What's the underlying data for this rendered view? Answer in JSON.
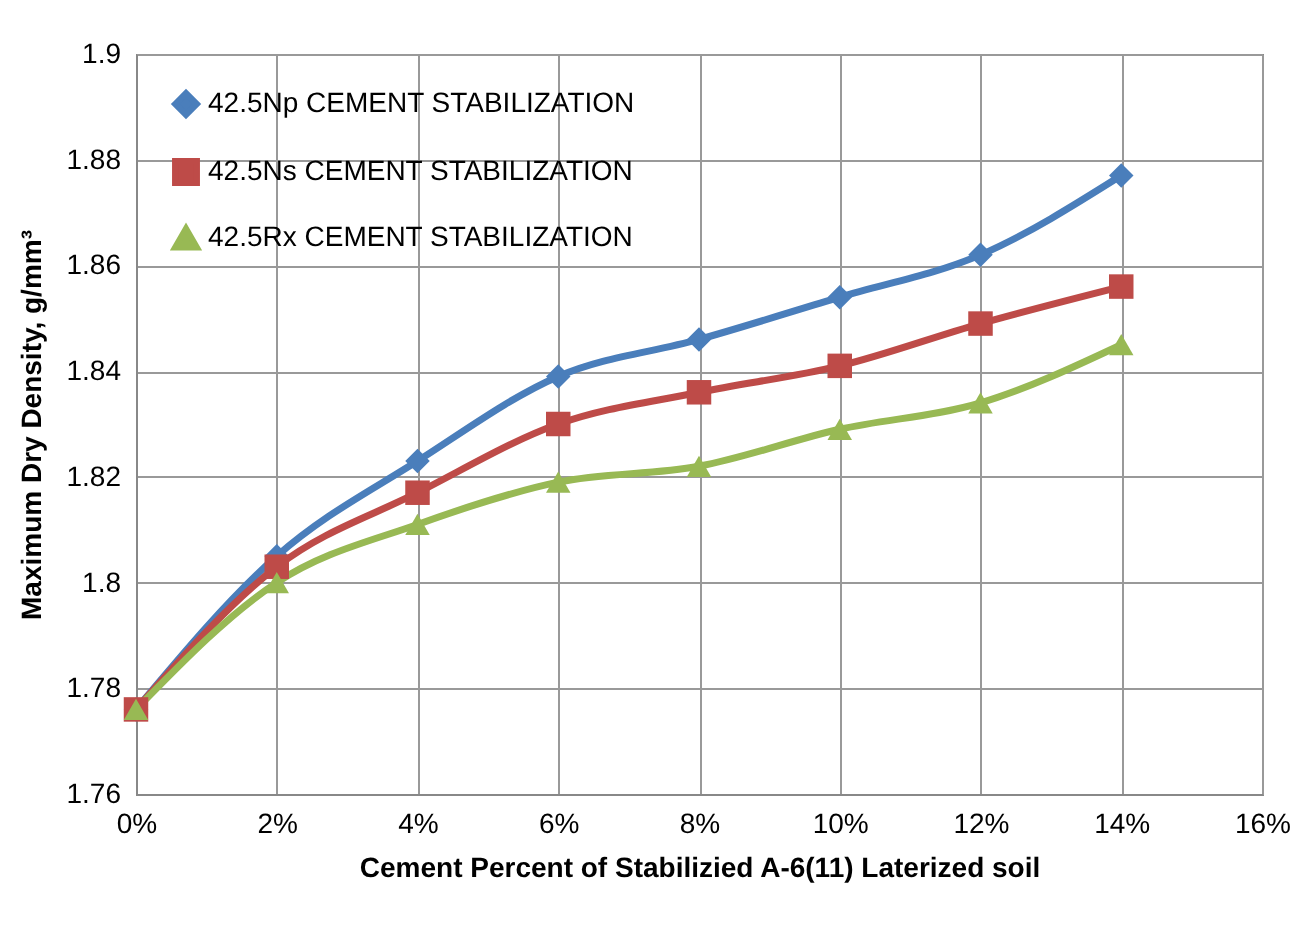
{
  "chart_data": {
    "type": "line",
    "xlabel": "Cement  Percent of Stabilizied A-6(11) Laterized soil",
    "ylabel": "Maximum Dry Density, g/mm³",
    "x": [
      0,
      2,
      4,
      6,
      8,
      10,
      12,
      14
    ],
    "series": [
      {
        "name": "42.5Np CEMENT STABILIZATION",
        "color": "#4a7ebb",
        "marker": "diamond",
        "values": [
          1.776,
          1.805,
          1.823,
          1.839,
          1.846,
          1.854,
          1.862,
          1.877
        ]
      },
      {
        "name": "42.5Ns CEMENT STABILIZATION",
        "color": "#be4b48",
        "marker": "square",
        "values": [
          1.776,
          1.803,
          1.817,
          1.83,
          1.836,
          1.841,
          1.849,
          1.856
        ]
      },
      {
        "name": "42.5Rx CEMENT STABILIZATION",
        "color": "#98b954",
        "marker": "triangle",
        "values": [
          1.776,
          1.8,
          1.811,
          1.819,
          1.822,
          1.829,
          1.834,
          1.845
        ]
      }
    ],
    "xlim": [
      0,
      16
    ],
    "xticks": [
      {
        "value": 0,
        "label": "0%"
      },
      {
        "value": 2,
        "label": "2%"
      },
      {
        "value": 4,
        "label": "4%"
      },
      {
        "value": 6,
        "label": "6%"
      },
      {
        "value": 8,
        "label": "8%"
      },
      {
        "value": 10,
        "label": "10%"
      },
      {
        "value": 12,
        "label": "12%"
      },
      {
        "value": 14,
        "label": "14%"
      },
      {
        "value": 16,
        "label": "16%"
      }
    ],
    "ylim": [
      1.76,
      1.9
    ],
    "yticks": [
      1.76,
      1.78,
      1.8,
      1.82,
      1.84,
      1.86,
      1.88,
      1.9
    ],
    "grid": true,
    "legend": "top left",
    "line_style": "solid"
  }
}
